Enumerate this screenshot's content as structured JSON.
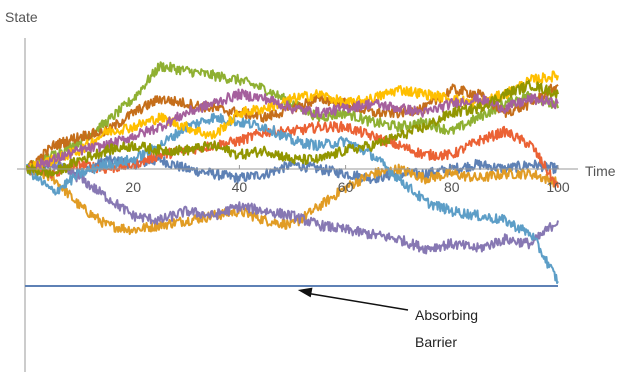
{
  "chart_data": {
    "type": "line",
    "title": "",
    "xlabel": "Time",
    "ylabel": "State",
    "xlim": [
      0,
      100
    ],
    "ylim": [
      -25,
      25
    ],
    "x_ticks": [
      20,
      40,
      60,
      80,
      100
    ],
    "x_tick_labels": [
      "20",
      "40",
      "60",
      "80",
      "100"
    ],
    "barrier": {
      "value": -25,
      "color": "#5e81b5"
    },
    "annotation": {
      "lines": [
        "Absorbing",
        "Barrier"
      ],
      "arrow_target": [
        51,
        -25
      ]
    },
    "series": [
      {
        "color": "#5e81b5",
        "x": [
          0,
          5,
          10,
          15,
          20,
          25,
          30,
          35,
          40,
          45,
          50,
          55,
          60,
          65,
          70,
          75,
          80,
          85,
          90,
          95,
          100
        ],
        "y": [
          0,
          1,
          -1,
          2,
          1,
          2,
          0,
          -1,
          -2,
          -1,
          1,
          0,
          -1,
          -2,
          -1,
          -1,
          0,
          1,
          0,
          1,
          0
        ]
      },
      {
        "color": "#e19c24",
        "x": [
          0,
          5,
          10,
          15,
          20,
          25,
          30,
          35,
          40,
          45,
          50,
          55,
          60,
          65,
          70,
          75,
          80,
          85,
          90,
          95,
          100
        ],
        "y": [
          0,
          -2,
          -8,
          -12,
          -13,
          -12,
          -11,
          -10,
          -9,
          -11,
          -12,
          -8,
          -4,
          -1,
          0,
          -2,
          -1,
          -2,
          -1,
          -1,
          -3
        ]
      },
      {
        "color": "#8fb032",
        "x": [
          0,
          5,
          10,
          15,
          20,
          25,
          30,
          35,
          40,
          45,
          50,
          55,
          60,
          65,
          70,
          75,
          80,
          85,
          90,
          95,
          100
        ],
        "y": [
          0,
          3,
          6,
          10,
          15,
          22,
          21,
          20,
          19,
          17,
          14,
          11,
          12,
          10,
          9,
          10,
          8,
          11,
          14,
          16,
          13
        ]
      },
      {
        "color": "#eb6235",
        "x": [
          0,
          5,
          10,
          15,
          20,
          25,
          30,
          35,
          40,
          45,
          50,
          55,
          60,
          65,
          70,
          75,
          80,
          85,
          90,
          95,
          100
        ],
        "y": [
          0,
          -1,
          1,
          0,
          1,
          3,
          4,
          5,
          6,
          8,
          8,
          9,
          9,
          7,
          5,
          3,
          3,
          6,
          8,
          5,
          -4
        ]
      },
      {
        "color": "#8778b3",
        "x": [
          0,
          5,
          10,
          15,
          20,
          25,
          30,
          35,
          40,
          45,
          50,
          55,
          60,
          65,
          70,
          75,
          80,
          85,
          90,
          95,
          100
        ],
        "y": [
          0,
          1,
          -2,
          -6,
          -10,
          -11,
          -9,
          -10,
          -8,
          -9,
          -10,
          -12,
          -13,
          -14,
          -15,
          -17,
          -16,
          -17,
          -15,
          -16,
          -11
        ]
      },
      {
        "color": "#c56e1a",
        "x": [
          0,
          5,
          10,
          15,
          20,
          25,
          30,
          35,
          40,
          45,
          50,
          55,
          60,
          65,
          70,
          75,
          80,
          85,
          90,
          95,
          100
        ],
        "y": [
          0,
          5,
          7,
          8,
          12,
          15,
          14,
          13,
          12,
          11,
          13,
          15,
          14,
          12,
          12,
          13,
          17,
          16,
          12,
          14,
          18
        ]
      },
      {
        "color": "#5d9ec7",
        "x": [
          0,
          5,
          10,
          15,
          20,
          25,
          30,
          35,
          40,
          45,
          50,
          55,
          60,
          65,
          70,
          75,
          80,
          85,
          90,
          95,
          100
        ],
        "y": [
          0,
          -5,
          -1,
          1,
          2,
          5,
          9,
          11,
          10,
          9,
          6,
          5,
          6,
          3,
          -2,
          -7,
          -9,
          -10,
          -11,
          -14,
          -24
        ]
      },
      {
        "color": "#ffbf00",
        "x": [
          0,
          5,
          10,
          15,
          20,
          25,
          30,
          35,
          40,
          45,
          50,
          55,
          60,
          65,
          70,
          75,
          80,
          85,
          90,
          95,
          100
        ],
        "y": [
          0,
          2,
          4,
          8,
          9,
          11,
          9,
          7,
          12,
          13,
          15,
          16,
          14,
          15,
          17,
          16,
          15,
          14,
          16,
          19,
          20
        ]
      },
      {
        "color": "#a5609d",
        "x": [
          0,
          5,
          10,
          15,
          20,
          25,
          30,
          35,
          40,
          45,
          50,
          55,
          60,
          65,
          70,
          75,
          80,
          85,
          90,
          95,
          100
        ],
        "y": [
          0,
          2,
          4,
          5,
          7,
          9,
          12,
          14,
          16,
          15,
          13,
          12,
          13,
          14,
          13,
          12,
          14,
          15,
          13,
          15,
          14
        ]
      },
      {
        "color": "#929600",
        "x": [
          0,
          5,
          10,
          15,
          20,
          25,
          30,
          35,
          40,
          45,
          50,
          55,
          60,
          65,
          70,
          75,
          80,
          85,
          90,
          95,
          100
        ],
        "y": [
          0,
          -1,
          2,
          4,
          5,
          4,
          4,
          5,
          3,
          4,
          2,
          2,
          4,
          5,
          7,
          9,
          12,
          13,
          16,
          18,
          16
        ]
      }
    ]
  }
}
